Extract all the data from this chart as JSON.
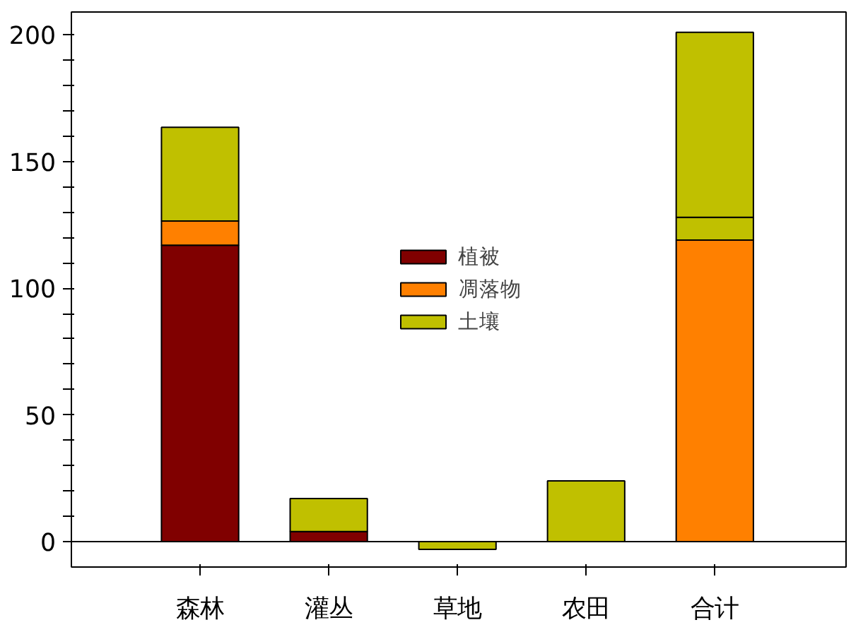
{
  "chart_data": {
    "type": "bar",
    "stacked": true,
    "categories": [
      "森林",
      "灌丛",
      "草地",
      "农田",
      "合计"
    ],
    "series": [
      {
        "name": "植被",
        "color": "#800000",
        "colors": [
          "#800000",
          "#800000",
          "#800000",
          "#800000",
          "#ff8000"
        ],
        "values": [
          117,
          4,
          0,
          0,
          119
        ]
      },
      {
        "name": "凋落物",
        "color": "#ff8000",
        "colors": [
          "#ff8000",
          "#ff8000",
          "#ff8000",
          "#ff8000",
          "#c0c000"
        ],
        "values": [
          9.5,
          0,
          0,
          0,
          9
        ]
      },
      {
        "name": "土壤",
        "color": "#c0c000",
        "colors": [
          "#c0c000",
          "#c0c000",
          "#c0c000",
          "#c0c000",
          "#c0c000"
        ],
        "values": [
          37,
          13,
          -3,
          24,
          73
        ]
      }
    ],
    "ylim": [
      -10,
      209
    ],
    "yticks": [
      0,
      {
        "value": 10,
        "label": null
      },
      {
        "value": 20,
        "label": null
      },
      {
        "value": 30,
        "label": null
      },
      {
        "value": 40,
        "label": null
      },
      50,
      {
        "value": 60,
        "label": null
      },
      {
        "value": 70,
        "label": null
      },
      {
        "value": 80,
        "label": null
      },
      {
        "value": 90,
        "label": null
      },
      100,
      {
        "value": 110,
        "label": null
      },
      {
        "value": 120,
        "label": null
      },
      {
        "value": 130,
        "label": null
      },
      {
        "value": 140,
        "label": null
      },
      150,
      {
        "value": 160,
        "label": null
      },
      {
        "value": 170,
        "label": null
      },
      {
        "value": 180,
        "label": null
      },
      {
        "value": 190,
        "label": null
      },
      200
    ],
    "ref_lines": [
      {
        "axis": "y",
        "value": 0
      }
    ],
    "grid": false,
    "legend": "center"
  }
}
